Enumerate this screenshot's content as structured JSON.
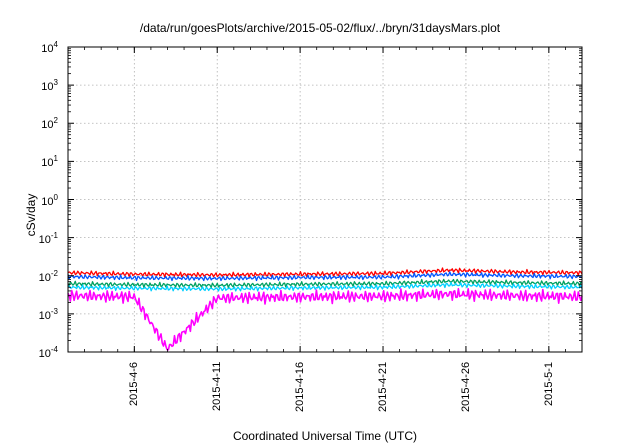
{
  "chart_data": {
    "type": "line",
    "title": "/data/run/goesPlots/archive/2015-05-02/flux/../bryn/31daysMars.plot",
    "xlabel": "Coordinated Universal Time (UTC)",
    "ylabel": "cSv/day",
    "y_scale": "log",
    "ylim": [
      0.0001,
      10000
    ],
    "xlim": [
      "2015-04-02",
      "2015-05-03"
    ],
    "grid": true,
    "y_ticks": [
      {
        "base": "10",
        "exp": "-4"
      },
      {
        "base": "10",
        "exp": "-3"
      },
      {
        "base": "10",
        "exp": "-2"
      },
      {
        "base": "10",
        "exp": "-1"
      },
      {
        "base": "10",
        "exp": "0"
      },
      {
        "base": "10",
        "exp": "1"
      },
      {
        "base": "10",
        "exp": "2"
      },
      {
        "base": "10",
        "exp": "3"
      },
      {
        "base": "10",
        "exp": "4"
      }
    ],
    "x_ticks": [
      "2015-4-6",
      "2015-4-11",
      "2015-4-16",
      "2015-4-21",
      "2015-4-26",
      "2015-5-1"
    ],
    "x_tick_dates": [
      "2015-04-06",
      "2015-04-11",
      "2015-04-16",
      "2015-04-21",
      "2015-04-26",
      "2015-05-01"
    ],
    "series": [
      {
        "color": "#ff0000",
        "dates": [
          "2015-04-02",
          "2015-04-06",
          "2015-04-11",
          "2015-04-16",
          "2015-04-21",
          "2015-04-25",
          "2015-04-29",
          "2015-05-03"
        ],
        "values": [
          0.012,
          0.011,
          0.0105,
          0.011,
          0.0115,
          0.014,
          0.0125,
          0.012
        ]
      },
      {
        "color": "#0055ff",
        "dates": [
          "2015-04-02",
          "2015-04-06",
          "2015-04-11",
          "2015-04-16",
          "2015-04-21",
          "2015-04-25",
          "2015-04-29",
          "2015-05-03"
        ],
        "values": [
          0.0095,
          0.0088,
          0.0085,
          0.009,
          0.0092,
          0.011,
          0.01,
          0.0095
        ]
      },
      {
        "color": "#00a060",
        "dates": [
          "2015-04-02",
          "2015-04-06",
          "2015-04-11",
          "2015-04-16",
          "2015-04-21",
          "2015-04-25",
          "2015-04-29",
          "2015-05-03"
        ],
        "values": [
          0.0062,
          0.0058,
          0.0056,
          0.006,
          0.0062,
          0.0072,
          0.0066,
          0.0062
        ]
      },
      {
        "color": "#00d0ff",
        "dates": [
          "2015-04-02",
          "2015-04-06",
          "2015-04-11",
          "2015-04-16",
          "2015-04-21",
          "2015-04-25",
          "2015-04-29",
          "2015-05-03"
        ],
        "values": [
          0.005,
          0.0047,
          0.0045,
          0.0048,
          0.005,
          0.0058,
          0.0053,
          0.005
        ]
      },
      {
        "color": "#ff00ff",
        "dates": [
          "2015-04-02",
          "2015-04-06",
          "2015-04-08",
          "2015-04-11",
          "2015-04-16",
          "2015-04-21",
          "2015-04-25",
          "2015-04-29",
          "2015-05-03"
        ],
        "values": [
          0.003,
          0.0028,
          0.00012,
          0.0026,
          0.0028,
          0.0029,
          0.0033,
          0.003,
          0.0028
        ]
      }
    ]
  }
}
